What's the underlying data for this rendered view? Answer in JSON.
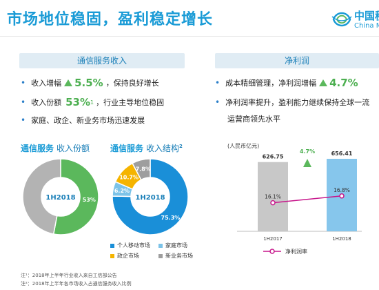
{
  "header": {
    "title": "市场地位稳固，盈利稳定增长",
    "logo_cn": "中国移",
    "logo_en": "China Mo"
  },
  "left": {
    "section_title": "通信服务收入",
    "bullets": [
      {
        "pre": "收入增幅",
        "value": "5.5%",
        "post": "，保持良好增长"
      },
      {
        "pre": "收入份额",
        "value": "53%",
        "sup": "1",
        "post": "，行业主导地位稳固"
      },
      {
        "pre": "家庭、政企、新业务市场迅速发展"
      }
    ]
  },
  "right": {
    "section_title": "净利润",
    "bullets": [
      {
        "pre": "成本精细管理，净利润增幅",
        "value": "4.7%"
      },
      {
        "pre": "净利润率提升，盈利能力继续保持全球一流"
      },
      {
        "pre": "运营商领先水平"
      }
    ]
  },
  "chart_data": [
    {
      "type": "pie",
      "title": "通信服务",
      "subtitle": "收入份额",
      "sup": "",
      "center_label": "1H2018",
      "slices": [
        {
          "value": 53,
          "label": "53%",
          "color": "#5bb85c"
        },
        {
          "value": 47,
          "label": "",
          "color": "#b3b3b3"
        }
      ]
    },
    {
      "type": "pie",
      "title": "通信服务",
      "subtitle": "收入结构",
      "sup": "2",
      "center_label": "1H2018",
      "slices": [
        {
          "name": "个人移动市场",
          "value": 75.3,
          "label": "75.3%",
          "color": "#1a8fd8"
        },
        {
          "name": "家庭市场",
          "value": 6.2,
          "label": "6.2%",
          "color": "#7cc3e8"
        },
        {
          "name": "政企市场",
          "value": 10.7,
          "label": "10.7%",
          "color": "#f5b400"
        },
        {
          "name": "新业务市场",
          "value": 7.8,
          "label": "7.8%",
          "color": "#9e9e9e"
        }
      ],
      "legend": [
        "个人移动市场",
        "家庭市场",
        "政企市场",
        "新业务市场"
      ]
    },
    {
      "type": "bar",
      "ylabel": "(人民币亿元)",
      "categories": [
        "1H2017",
        "1H2018"
      ],
      "values": [
        626.75,
        656.41
      ],
      "value_labels": [
        "626.75",
        "656.41"
      ],
      "colors": [
        "#c8c8c8",
        "#86c6ec"
      ],
      "growth_label": "4.7%",
      "line": {
        "name": "净利润率",
        "values": [
          16.1,
          16.8
        ],
        "labels": [
          "16.1%",
          "16.8%"
        ],
        "color": "#c7168b"
      }
    }
  ],
  "notes": [
    "注¹：2018年上半年行业收入来自工信部公告",
    "注²：2018年上半年各市场收入占通信服务收入比例"
  ]
}
